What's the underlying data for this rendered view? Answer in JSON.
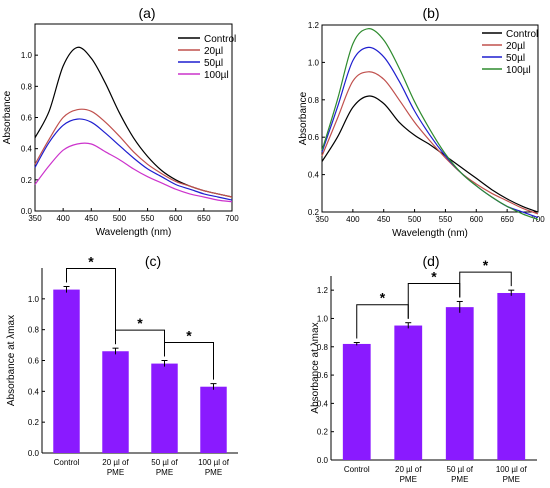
{
  "chart_data": [
    {
      "panel": "(a)",
      "type": "line",
      "title": "",
      "xlabel": "Wavelength (nm)",
      "ylabel": "Absorbance",
      "xlim": [
        350,
        700
      ],
      "ylim": [
        0,
        1.2
      ],
      "xticks": [
        "350",
        "400",
        "450",
        "500",
        "550",
        "600",
        "650",
        "700"
      ],
      "yticks": [
        "0.0",
        "0.2",
        "0.4",
        "0.6",
        "0.8",
        "1.0"
      ],
      "legend": "top-right",
      "grid": false,
      "x": [
        350,
        375,
        400,
        425,
        450,
        475,
        500,
        525,
        550,
        575,
        600,
        625,
        650,
        675,
        700
      ],
      "series": [
        {
          "name": "Control",
          "color": "#000000",
          "values": [
            0.47,
            0.64,
            0.93,
            1.05,
            0.98,
            0.82,
            0.63,
            0.47,
            0.35,
            0.26,
            0.2,
            0.16,
            0.13,
            0.11,
            0.09
          ]
        },
        {
          "name": "20µl",
          "color": "#c0504d",
          "values": [
            0.3,
            0.46,
            0.6,
            0.65,
            0.64,
            0.57,
            0.48,
            0.38,
            0.3,
            0.24,
            0.19,
            0.16,
            0.13,
            0.11,
            0.09
          ]
        },
        {
          "name": "50µl",
          "color": "#1f1fcf",
          "values": [
            0.28,
            0.44,
            0.55,
            0.59,
            0.57,
            0.5,
            0.42,
            0.34,
            0.27,
            0.22,
            0.17,
            0.14,
            0.11,
            0.09,
            0.07
          ]
        },
        {
          "name": "100µl",
          "color": "#cc33cc",
          "values": [
            0.17,
            0.29,
            0.39,
            0.43,
            0.43,
            0.38,
            0.33,
            0.27,
            0.22,
            0.18,
            0.14,
            0.11,
            0.09,
            0.07,
            0.06
          ]
        }
      ]
    },
    {
      "panel": "(b)",
      "type": "line",
      "title": "",
      "xlabel": "Wavelength (nm)",
      "ylabel": "Absorbance",
      "xlim": [
        350,
        700
      ],
      "ylim": [
        0.2,
        1.2
      ],
      "xticks": [
        "350",
        "400",
        "450",
        "500",
        "550",
        "600",
        "650",
        "700"
      ],
      "yticks": [
        "0.2",
        "0.4",
        "0.6",
        "0.8",
        "1.0",
        "1.2"
      ],
      "legend": "top-right",
      "grid": false,
      "x": [
        350,
        375,
        400,
        425,
        450,
        475,
        500,
        525,
        550,
        575,
        600,
        625,
        650,
        675,
        700
      ],
      "series": [
        {
          "name": "Control",
          "color": "#000000",
          "values": [
            0.47,
            0.6,
            0.76,
            0.82,
            0.78,
            0.68,
            0.61,
            0.56,
            0.5,
            0.44,
            0.38,
            0.32,
            0.27,
            0.23,
            0.2
          ]
        },
        {
          "name": "20µl",
          "color": "#c0504d",
          "values": [
            0.5,
            0.7,
            0.9,
            0.95,
            0.91,
            0.8,
            0.68,
            0.58,
            0.49,
            0.41,
            0.35,
            0.3,
            0.26,
            0.22,
            0.19
          ]
        },
        {
          "name": "50µl",
          "color": "#1f1fcf",
          "values": [
            0.52,
            0.76,
            1.01,
            1.08,
            1.03,
            0.9,
            0.74,
            0.61,
            0.5,
            0.41,
            0.34,
            0.28,
            0.23,
            0.2,
            0.17
          ]
        },
        {
          "name": "100µl",
          "color": "#2e8b2e",
          "values": [
            0.53,
            0.8,
            1.1,
            1.18,
            1.12,
            0.97,
            0.79,
            0.64,
            0.51,
            0.41,
            0.34,
            0.28,
            0.23,
            0.19,
            0.16
          ]
        }
      ]
    },
    {
      "panel": "(c)",
      "type": "bar",
      "title": "",
      "xlabel": "",
      "ylabel": "Absorbance at λmax",
      "ylim": [
        0,
        1.2
      ],
      "yticks": [
        "0.0",
        "0.2",
        "0.4",
        "0.6",
        "0.8",
        "1.0"
      ],
      "categories": [
        [
          "Control"
        ],
        [
          "20 µl of",
          "PME"
        ],
        [
          "50 µl of",
          "PME"
        ],
        [
          "100 µl of",
          "PME"
        ]
      ],
      "values": [
        1.06,
        0.66,
        0.58,
        0.43
      ],
      "errors": [
        0.02,
        0.02,
        0.02,
        0.02
      ],
      "bar_color": "#8a1aff",
      "significance": [
        {
          "from": 0,
          "to": 1,
          "label": "*"
        },
        {
          "from": 1,
          "to": 2,
          "label": "*"
        },
        {
          "from": 2,
          "to": 3,
          "label": "*"
        }
      ]
    },
    {
      "panel": "(d)",
      "type": "bar",
      "title": "",
      "xlabel": "",
      "ylabel": "Absorbance at λmax",
      "ylim": [
        0,
        1.3
      ],
      "yticks": [
        "0.0",
        "0.2",
        "0.4",
        "0.6",
        "0.8",
        "1.0",
        "1.2"
      ],
      "categories": [
        [
          "Control"
        ],
        [
          "20 µl of",
          "PME"
        ],
        [
          "50 µl of",
          "PME"
        ],
        [
          "100 µl of",
          "PME"
        ]
      ],
      "values": [
        0.82,
        0.95,
        1.08,
        1.18
      ],
      "errors": [
        0.01,
        0.02,
        0.04,
        0.02
      ],
      "bar_color": "#8a1aff",
      "significance": [
        {
          "from": 0,
          "to": 1,
          "label": "*"
        },
        {
          "from": 1,
          "to": 2,
          "label": "*"
        },
        {
          "from": 2,
          "to": 3,
          "label": "*"
        }
      ]
    }
  ]
}
